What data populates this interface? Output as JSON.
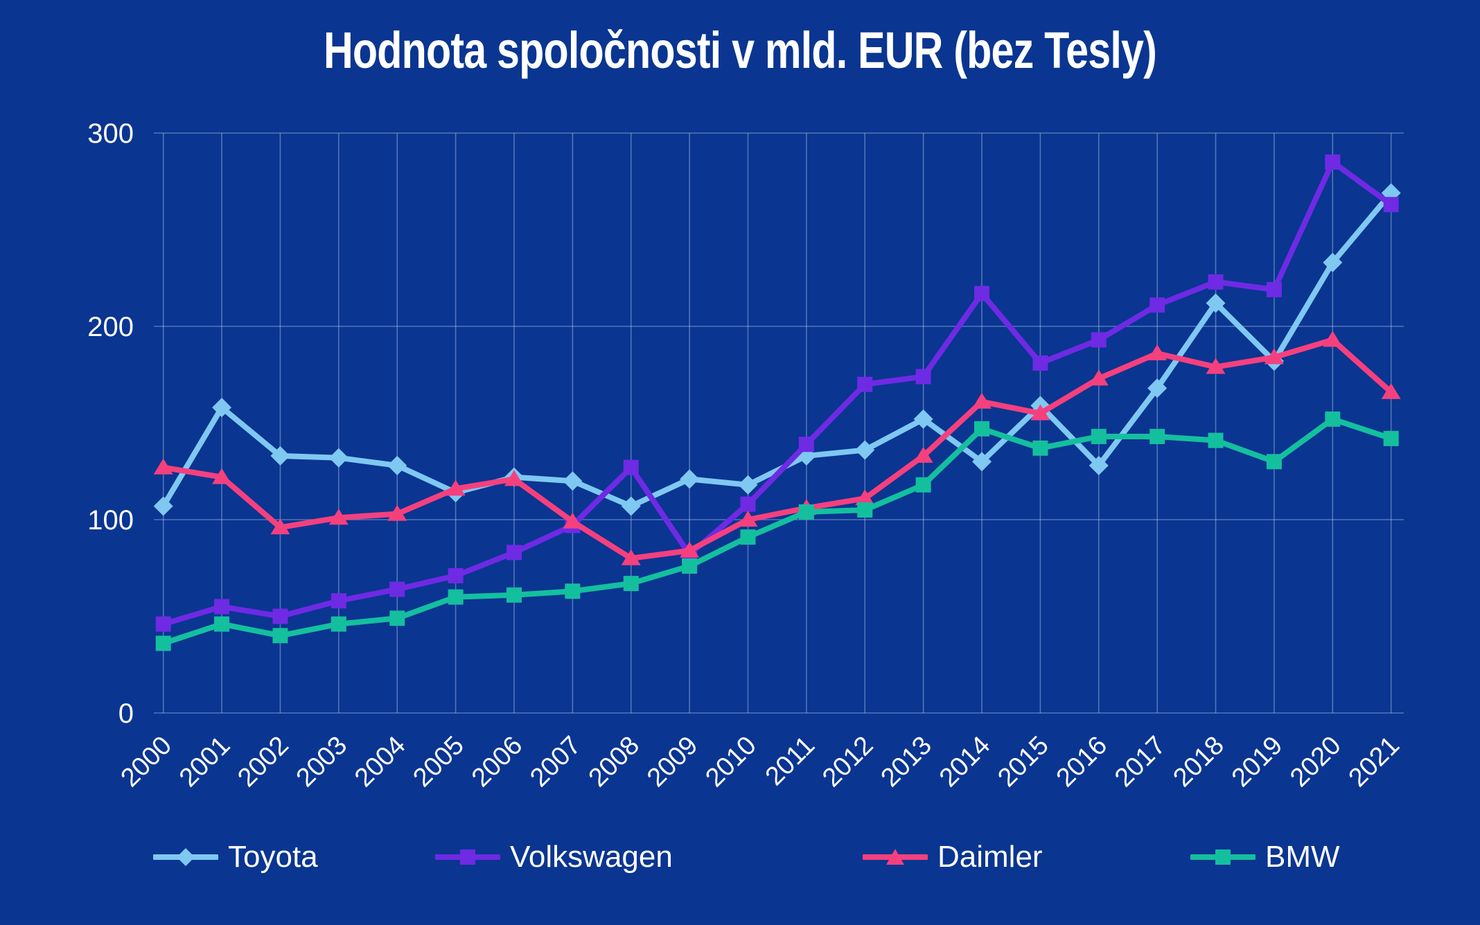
{
  "title": "Hodnota spoločnosti v mld. EUR (bez Tesly)",
  "colors": {
    "background": "#0a3591",
    "text": "#ffffff",
    "grid": "#a9c6e8",
    "toyota": "#7fc8f2",
    "volkswagen": "#6f2ae4",
    "daimler": "#f5407e",
    "bmw": "#14bf9e"
  },
  "chart_data": {
    "type": "line",
    "title": "Hodnota spoločnosti v mld. EUR (bez Tesly)",
    "xlabel": "",
    "ylabel": "",
    "ylim": [
      0,
      300
    ],
    "yticks": [
      0,
      100,
      200,
      300
    ],
    "grid": true,
    "legend_position": "bottom",
    "categories": [
      "2000",
      "2001",
      "2002",
      "2003",
      "2004",
      "2005",
      "2006",
      "2007",
      "2008",
      "2009",
      "2010",
      "2011",
      "2012",
      "2013",
      "2014",
      "2015",
      "2016",
      "2017",
      "2018",
      "2019",
      "2020",
      "2021"
    ],
    "series": [
      {
        "name": "Toyota",
        "color": "#7fc8f2",
        "marker": "diamond",
        "values": [
          107,
          158,
          133,
          132,
          128,
          114,
          122,
          120,
          107,
          121,
          118,
          133,
          136,
          152,
          130,
          159,
          128,
          168,
          212,
          182,
          233,
          269
        ]
      },
      {
        "name": "Volkswagen",
        "color": "#6f2ae4",
        "marker": "square",
        "values": [
          46,
          55,
          50,
          58,
          64,
          71,
          83,
          97,
          127,
          82,
          108,
          139,
          170,
          174,
          217,
          181,
          193,
          211,
          223,
          219,
          285,
          263
        ]
      },
      {
        "name": "Daimler",
        "color": "#f5407e",
        "marker": "triangle",
        "values": [
          127,
          122,
          96,
          101,
          103,
          116,
          121,
          99,
          80,
          84,
          100,
          106,
          111,
          133,
          161,
          155,
          173,
          186,
          179,
          184,
          193,
          166
        ]
      },
      {
        "name": "BMW",
        "color": "#14bf9e",
        "marker": "square",
        "values": [
          36,
          46,
          40,
          46,
          49,
          60,
          61,
          63,
          67,
          76,
          91,
          104,
          105,
          118,
          147,
          137,
          143,
          143,
          141,
          130,
          152,
          142
        ]
      }
    ]
  }
}
